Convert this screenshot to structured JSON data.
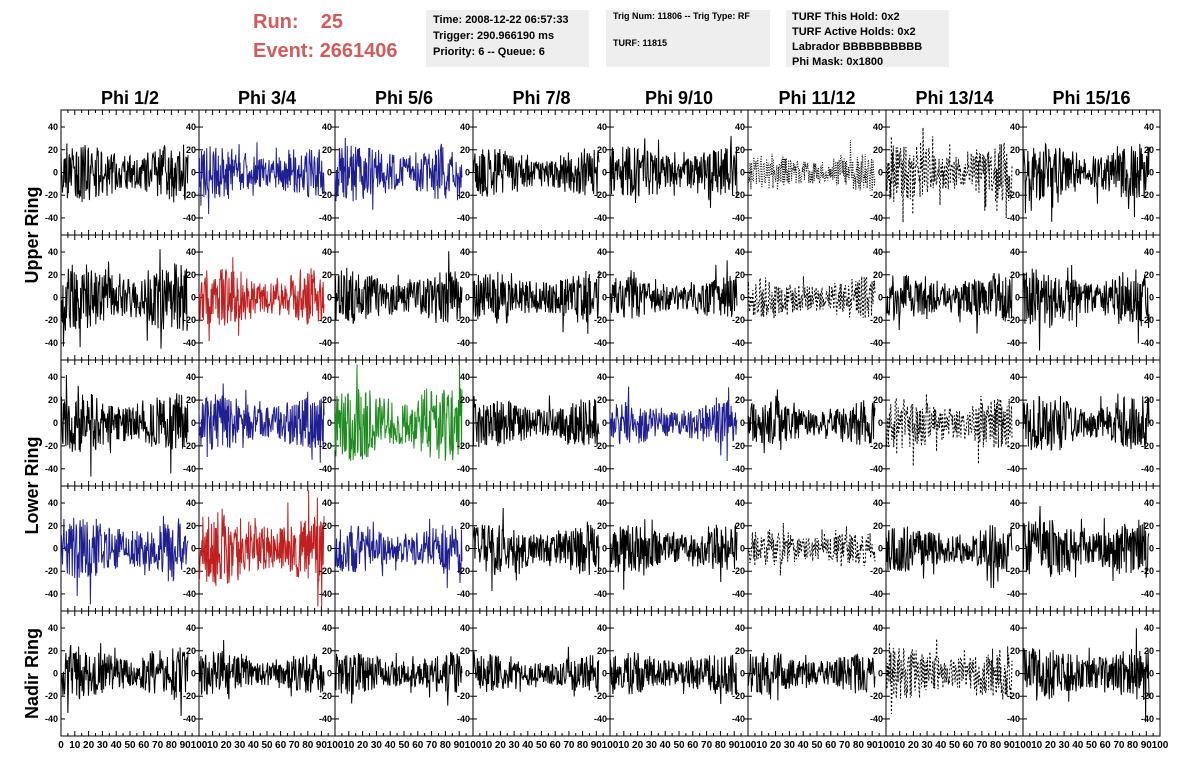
{
  "header": {
    "run_label": "Run:",
    "run_value": "25",
    "event_label": "Event:",
    "event_value": "2661406",
    "accent_color": "#d25b5b"
  },
  "info_time": {
    "line1": "Time: 2008-12-22 06:57:33",
    "line2": "Trigger: 290.966190 ms",
    "line3": "Priority: 6 -- Queue: 6"
  },
  "info_trig": {
    "line1": "Trig Num: 11806 -- Trig Type: RF",
    "line2": "TURF: 11815"
  },
  "info_turf": {
    "line1": "TURF This Hold: 0x2",
    "line2": "TURF Active Holds: 0x2",
    "line3": "Labrador BBBBBBBBBB",
    "line4": "Phi Mask: 0x1800"
  },
  "chart_data": {
    "type": "line",
    "title": "",
    "xlabel": "",
    "ylabel": "",
    "columns": [
      "Phi 1/2",
      "Phi 3/4",
      "Phi 5/6",
      "Phi 7/8",
      "Phi 9/10",
      "Phi 11/12",
      "Phi 13/14",
      "Phi 15/16"
    ],
    "rows": [
      {
        "name": "Upper Ring",
        "panels": 2
      },
      {
        "name": "Lower Ring",
        "panels": 2
      },
      {
        "name": "Nadir Ring",
        "panels": 1
      }
    ],
    "y_ticks": [
      -40,
      -20,
      0,
      20,
      40
    ],
    "y_tick_labels": [
      "-40",
      "-20",
      "0",
      "20",
      "40"
    ],
    "ylim": [
      -55,
      55
    ],
    "xlim": [
      0,
      100
    ],
    "x_ticks": [
      0,
      10,
      20,
      30,
      40,
      50,
      60,
      70,
      80,
      90,
      100
    ],
    "x_tick_labels": [
      "0",
      "10",
      "20",
      "30",
      "40",
      "50",
      "60",
      "70",
      "80",
      "90",
      "100"
    ],
    "grid": false,
    "legend": "none",
    "samples_per_trace": 260,
    "trace_colors": {
      "black": "#000000",
      "blue": "#1f1f8f",
      "red": "#c02020",
      "green": "#1e8c1e"
    },
    "panels": [
      [
        {
          "color": "black",
          "style": "solid",
          "amplitude": 22,
          "x_end": 92
        },
        {
          "color": "blue",
          "style": "solid",
          "amplitude": 20,
          "x_end": 92
        },
        {
          "color": "blue",
          "style": "solid",
          "amplitude": 22,
          "x_end": 92
        },
        {
          "color": "black",
          "style": "solid",
          "amplitude": 18,
          "x_end": 92
        },
        {
          "color": "black",
          "style": "solid",
          "amplitude": 20,
          "x_end": 92
        },
        {
          "color": "black",
          "style": "dotted",
          "amplitude": 14,
          "x_end": 92
        },
        {
          "color": "black",
          "style": "dashed",
          "amplitude": 22,
          "x_end": 92
        },
        {
          "color": "black",
          "style": "solid",
          "amplitude": 22,
          "x_end": 92
        }
      ],
      [
        {
          "color": "black",
          "style": "solid",
          "amplitude": 26,
          "x_end": 92
        },
        {
          "color": "red",
          "style": "solid",
          "amplitude": 22,
          "x_end": 92
        },
        {
          "color": "black",
          "style": "solid",
          "amplitude": 20,
          "x_end": 92
        },
        {
          "color": "black",
          "style": "solid",
          "amplitude": 20,
          "x_end": 92
        },
        {
          "color": "black",
          "style": "solid",
          "amplitude": 16,
          "x_end": 92
        },
        {
          "color": "black",
          "style": "dashed",
          "amplitude": 16,
          "x_end": 92
        },
        {
          "color": "black",
          "style": "solid",
          "amplitude": 18,
          "x_end": 92
        },
        {
          "color": "black",
          "style": "solid",
          "amplitude": 22,
          "x_end": 92
        }
      ],
      [
        {
          "color": "black",
          "style": "solid",
          "amplitude": 22,
          "x_end": 92
        },
        {
          "color": "blue",
          "style": "solid",
          "amplitude": 20,
          "x_end": 92
        },
        {
          "color": "green",
          "style": "solid",
          "amplitude": 28,
          "x_end": 92
        },
        {
          "color": "black",
          "style": "solid",
          "amplitude": 18,
          "x_end": 92
        },
        {
          "color": "blue",
          "style": "solid",
          "amplitude": 16,
          "x_end": 92
        },
        {
          "color": "black",
          "style": "solid",
          "amplitude": 16,
          "x_end": 92
        },
        {
          "color": "black",
          "style": "dashed",
          "amplitude": 20,
          "x_end": 92
        },
        {
          "color": "black",
          "style": "solid",
          "amplitude": 20,
          "x_end": 92
        }
      ],
      [
        {
          "color": "blue",
          "style": "solid",
          "amplitude": 24,
          "x_end": 92
        },
        {
          "color": "red",
          "style": "solid",
          "amplitude": 28,
          "x_end": 92
        },
        {
          "color": "blue",
          "style": "solid",
          "amplitude": 18,
          "x_end": 92
        },
        {
          "color": "black",
          "style": "solid",
          "amplitude": 20,
          "x_end": 92
        },
        {
          "color": "black",
          "style": "solid",
          "amplitude": 18,
          "x_end": 92
        },
        {
          "color": "black",
          "style": "dashed",
          "amplitude": 14,
          "x_end": 92
        },
        {
          "color": "black",
          "style": "solid",
          "amplitude": 18,
          "x_end": 92
        },
        {
          "color": "black",
          "style": "solid",
          "amplitude": 22,
          "x_end": 92
        }
      ],
      [
        {
          "color": "black",
          "style": "solid",
          "amplitude": 20,
          "x_end": 92
        },
        {
          "color": "black",
          "style": "solid",
          "amplitude": 16,
          "x_end": 92
        },
        {
          "color": "black",
          "style": "solid",
          "amplitude": 16,
          "x_end": 92
        },
        {
          "color": "black",
          "style": "solid",
          "amplitude": 14,
          "x_end": 92
        },
        {
          "color": "black",
          "style": "solid",
          "amplitude": 16,
          "x_end": 92
        },
        {
          "color": "black",
          "style": "solid",
          "amplitude": 16,
          "x_end": 92
        },
        {
          "color": "black",
          "style": "dashed",
          "amplitude": 20,
          "x_end": 92
        },
        {
          "color": "black",
          "style": "solid",
          "amplitude": 20,
          "x_end": 92
        }
      ]
    ]
  }
}
